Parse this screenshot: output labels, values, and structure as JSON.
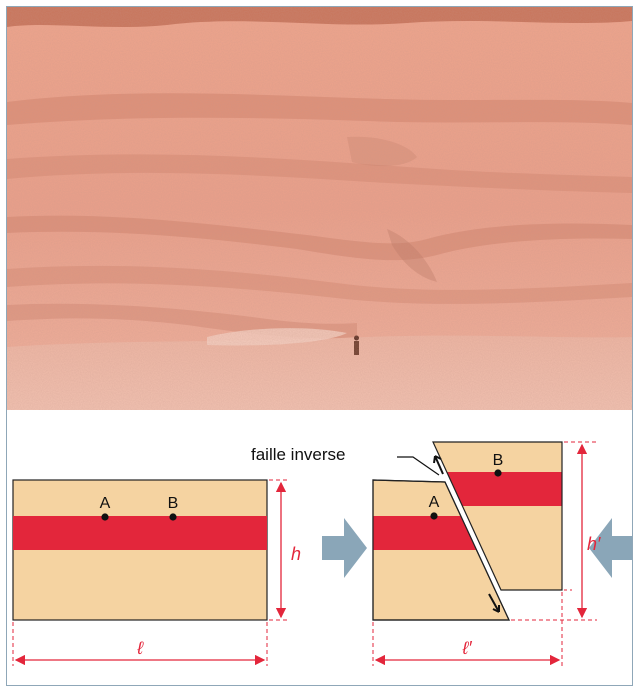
{
  "photo": {
    "subject": "outcrop-photo"
  },
  "diagram": {
    "fault_label": "faille inverse",
    "point_a": "A",
    "point_b": "B",
    "height_before": "h",
    "height_after": "h′",
    "length_before": "ℓ",
    "length_after": "ℓ′",
    "colors": {
      "rock_fill": "#f5d3a1",
      "red_layer": "#e3263b",
      "dimension": "#e3263b",
      "arrow_push": "#8aa6b8",
      "outline": "#222222"
    }
  }
}
